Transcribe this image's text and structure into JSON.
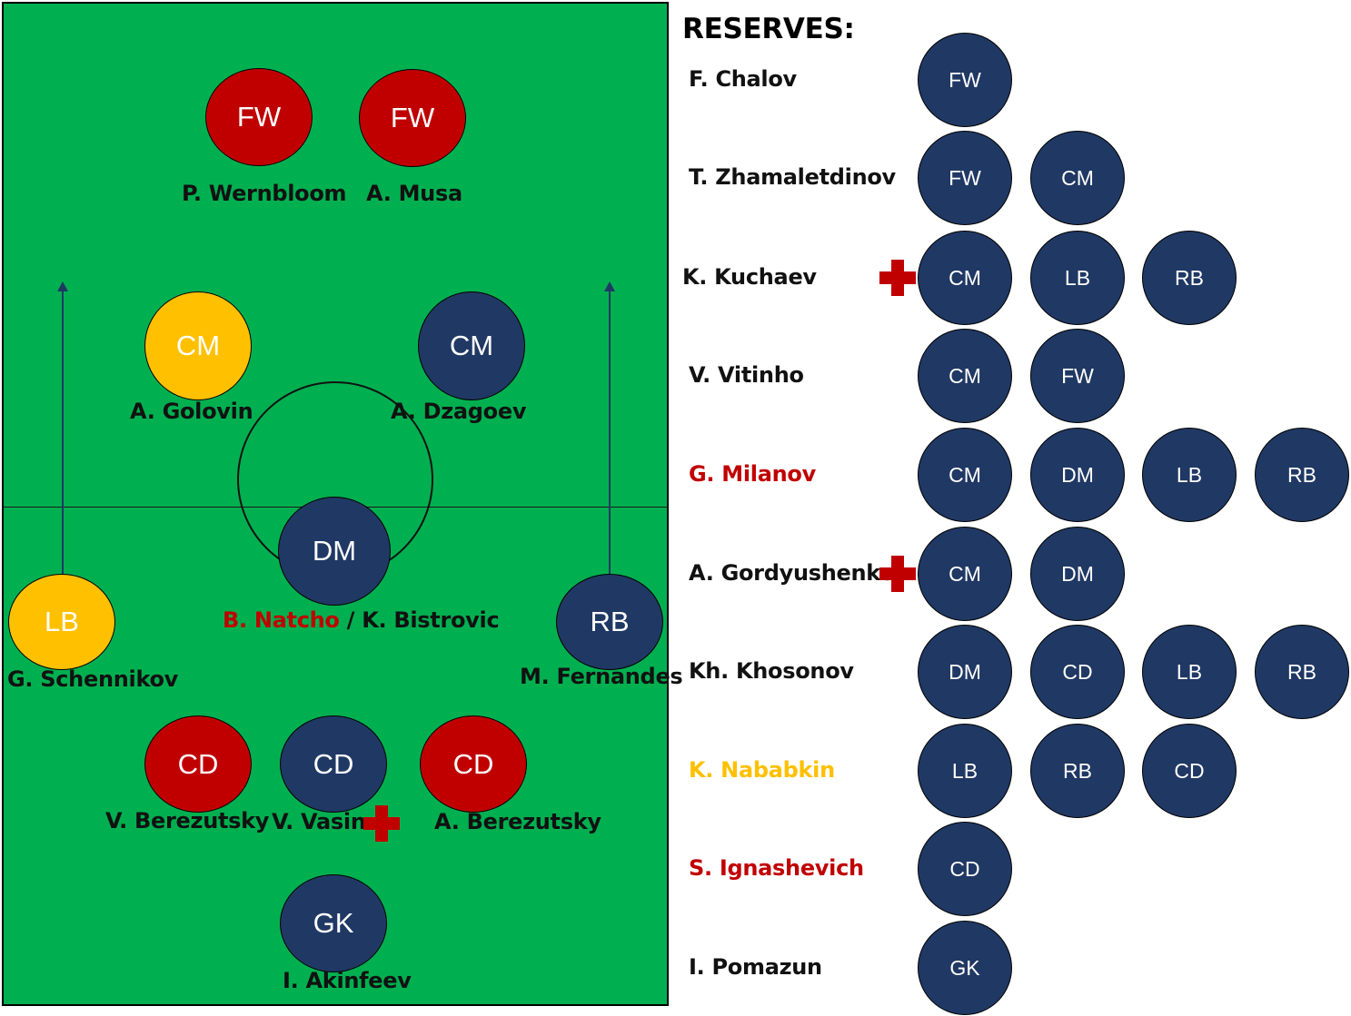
{
  "colors": {
    "pitch": "#00b050",
    "navy": "#203864",
    "red": "#c00000",
    "gold": "#ffc000",
    "arrow": "#1f3864"
  },
  "pitch": {
    "positions": {
      "fw1": "FW",
      "fw2": "FW",
      "cm1": "CM",
      "cm2": "CM",
      "dm": "DM",
      "lb": "LB",
      "rb": "RB",
      "cd1": "CD",
      "cd2": "CD",
      "cd3": "CD",
      "gk": "GK"
    },
    "names": {
      "fw1": "P. Wernbloom",
      "fw2": "A. Musa",
      "cm1": "A. Golovin",
      "cm2": "A. Dzagoev",
      "dm_a": "B. Natcho",
      "dm_sep": " / ",
      "dm_b": "K. Bistrovic",
      "lb": "G. Schennikov",
      "rb": "M. Fernandes",
      "cd1": "V. Berezutsky",
      "cd2": "V. Vasin",
      "cd3": "A. Berezutsky",
      "gk": "I. Akinfeev"
    }
  },
  "reserves": {
    "title": "RESERVES:",
    "players": [
      {
        "name": "F. Chalov",
        "color": "#111111",
        "positions": [
          "FW"
        ]
      },
      {
        "name": "T. Zhamaletdinov",
        "color": "#111111",
        "positions": [
          "FW",
          "CM"
        ]
      },
      {
        "name": "K. Kuchaev",
        "color": "#111111",
        "injured": true,
        "positions": [
          "CM",
          "LB",
          "RB"
        ]
      },
      {
        "name": "V. Vitinho",
        "color": "#111111",
        "positions": [
          "CM",
          "FW"
        ]
      },
      {
        "name": "G. Milanov",
        "color": "#c00000",
        "positions": [
          "CM",
          "DM",
          "LB",
          "RB"
        ]
      },
      {
        "name": "A. Gordyushenko",
        "color": "#111111",
        "injured": true,
        "positions": [
          "CM",
          "DM"
        ]
      },
      {
        "name": "Kh. Khosonov",
        "color": "#111111",
        "positions": [
          "DM",
          "CD",
          "LB",
          "RB"
        ]
      },
      {
        "name": "K. Nababkin",
        "color": "#ffc000",
        "positions": [
          "LB",
          "RB",
          "CD"
        ]
      },
      {
        "name": "S. Ignashevich",
        "color": "#c00000",
        "positions": [
          "CD"
        ]
      },
      {
        "name": "I. Pomazun",
        "color": "#111111",
        "positions": [
          "GK"
        ]
      }
    ]
  }
}
